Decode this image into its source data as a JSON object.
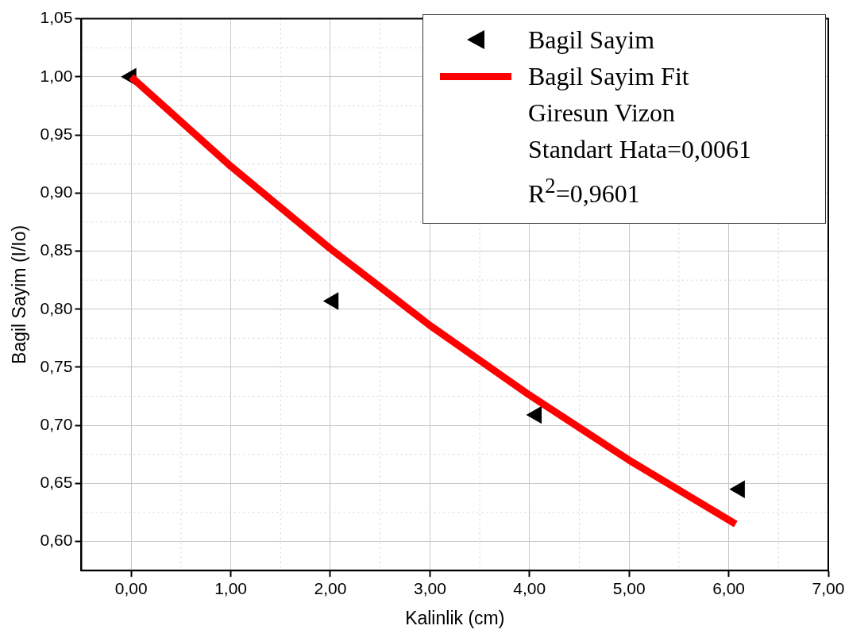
{
  "chart_data": {
    "type": "scatter",
    "xlabel": "Kalinlik (cm)",
    "ylabel": "Bagil Sayim (I/Io)",
    "xlim": [
      -0.5,
      7
    ],
    "xticks": [
      {
        "value": 0,
        "label": "0,00"
      },
      {
        "value": 1,
        "label": "1,00"
      },
      {
        "value": 2,
        "label": "2,00"
      },
      {
        "value": 3,
        "label": "3,00"
      },
      {
        "value": 4,
        "label": "4,00"
      },
      {
        "value": 5,
        "label": "5,00"
      },
      {
        "value": 6,
        "label": "6,00"
      },
      {
        "value": 7,
        "label": "7,00"
      }
    ],
    "ylim": [
      0.575,
      1.05
    ],
    "yticks": [
      {
        "value": 0.6,
        "label": "0,60"
      },
      {
        "value": 0.65,
        "label": "0,65"
      },
      {
        "value": 0.7,
        "label": "0,70"
      },
      {
        "value": 0.75,
        "label": "0,75"
      },
      {
        "value": 0.8,
        "label": "0,80"
      },
      {
        "value": 0.85,
        "label": "0,85"
      },
      {
        "value": 0.9,
        "label": "0,90"
      },
      {
        "value": 0.95,
        "label": "0,95"
      },
      {
        "value": 1.0,
        "label": "1,00"
      },
      {
        "value": 1.05,
        "label": "1,05"
      }
    ],
    "grid": true,
    "legend": "top right",
    "series": [
      {
        "name": "Bagil Sayim",
        "type": "scatter",
        "color": "#000000",
        "marker": "triangle",
        "x": [
          0.0,
          2.03,
          4.07,
          6.11
        ],
        "values": [
          1.0,
          0.807,
          0.709,
          0.645
        ]
      },
      {
        "name": "Bagil Sayim Fit",
        "type": "line",
        "color": "#ff0000",
        "marker": "none",
        "line_style": "solid",
        "x": [
          0.0,
          1.0,
          2.0,
          3.0,
          4.0,
          5.0,
          6.07
        ],
        "values": [
          1.0,
          0.923,
          0.852,
          0.786,
          0.726,
          0.67,
          0.615
        ]
      }
    ],
    "annotations": [
      "Giresun Vizon",
      "Standart Hata=0,0061",
      "R$^{2}$=0,9601"
    ]
  }
}
